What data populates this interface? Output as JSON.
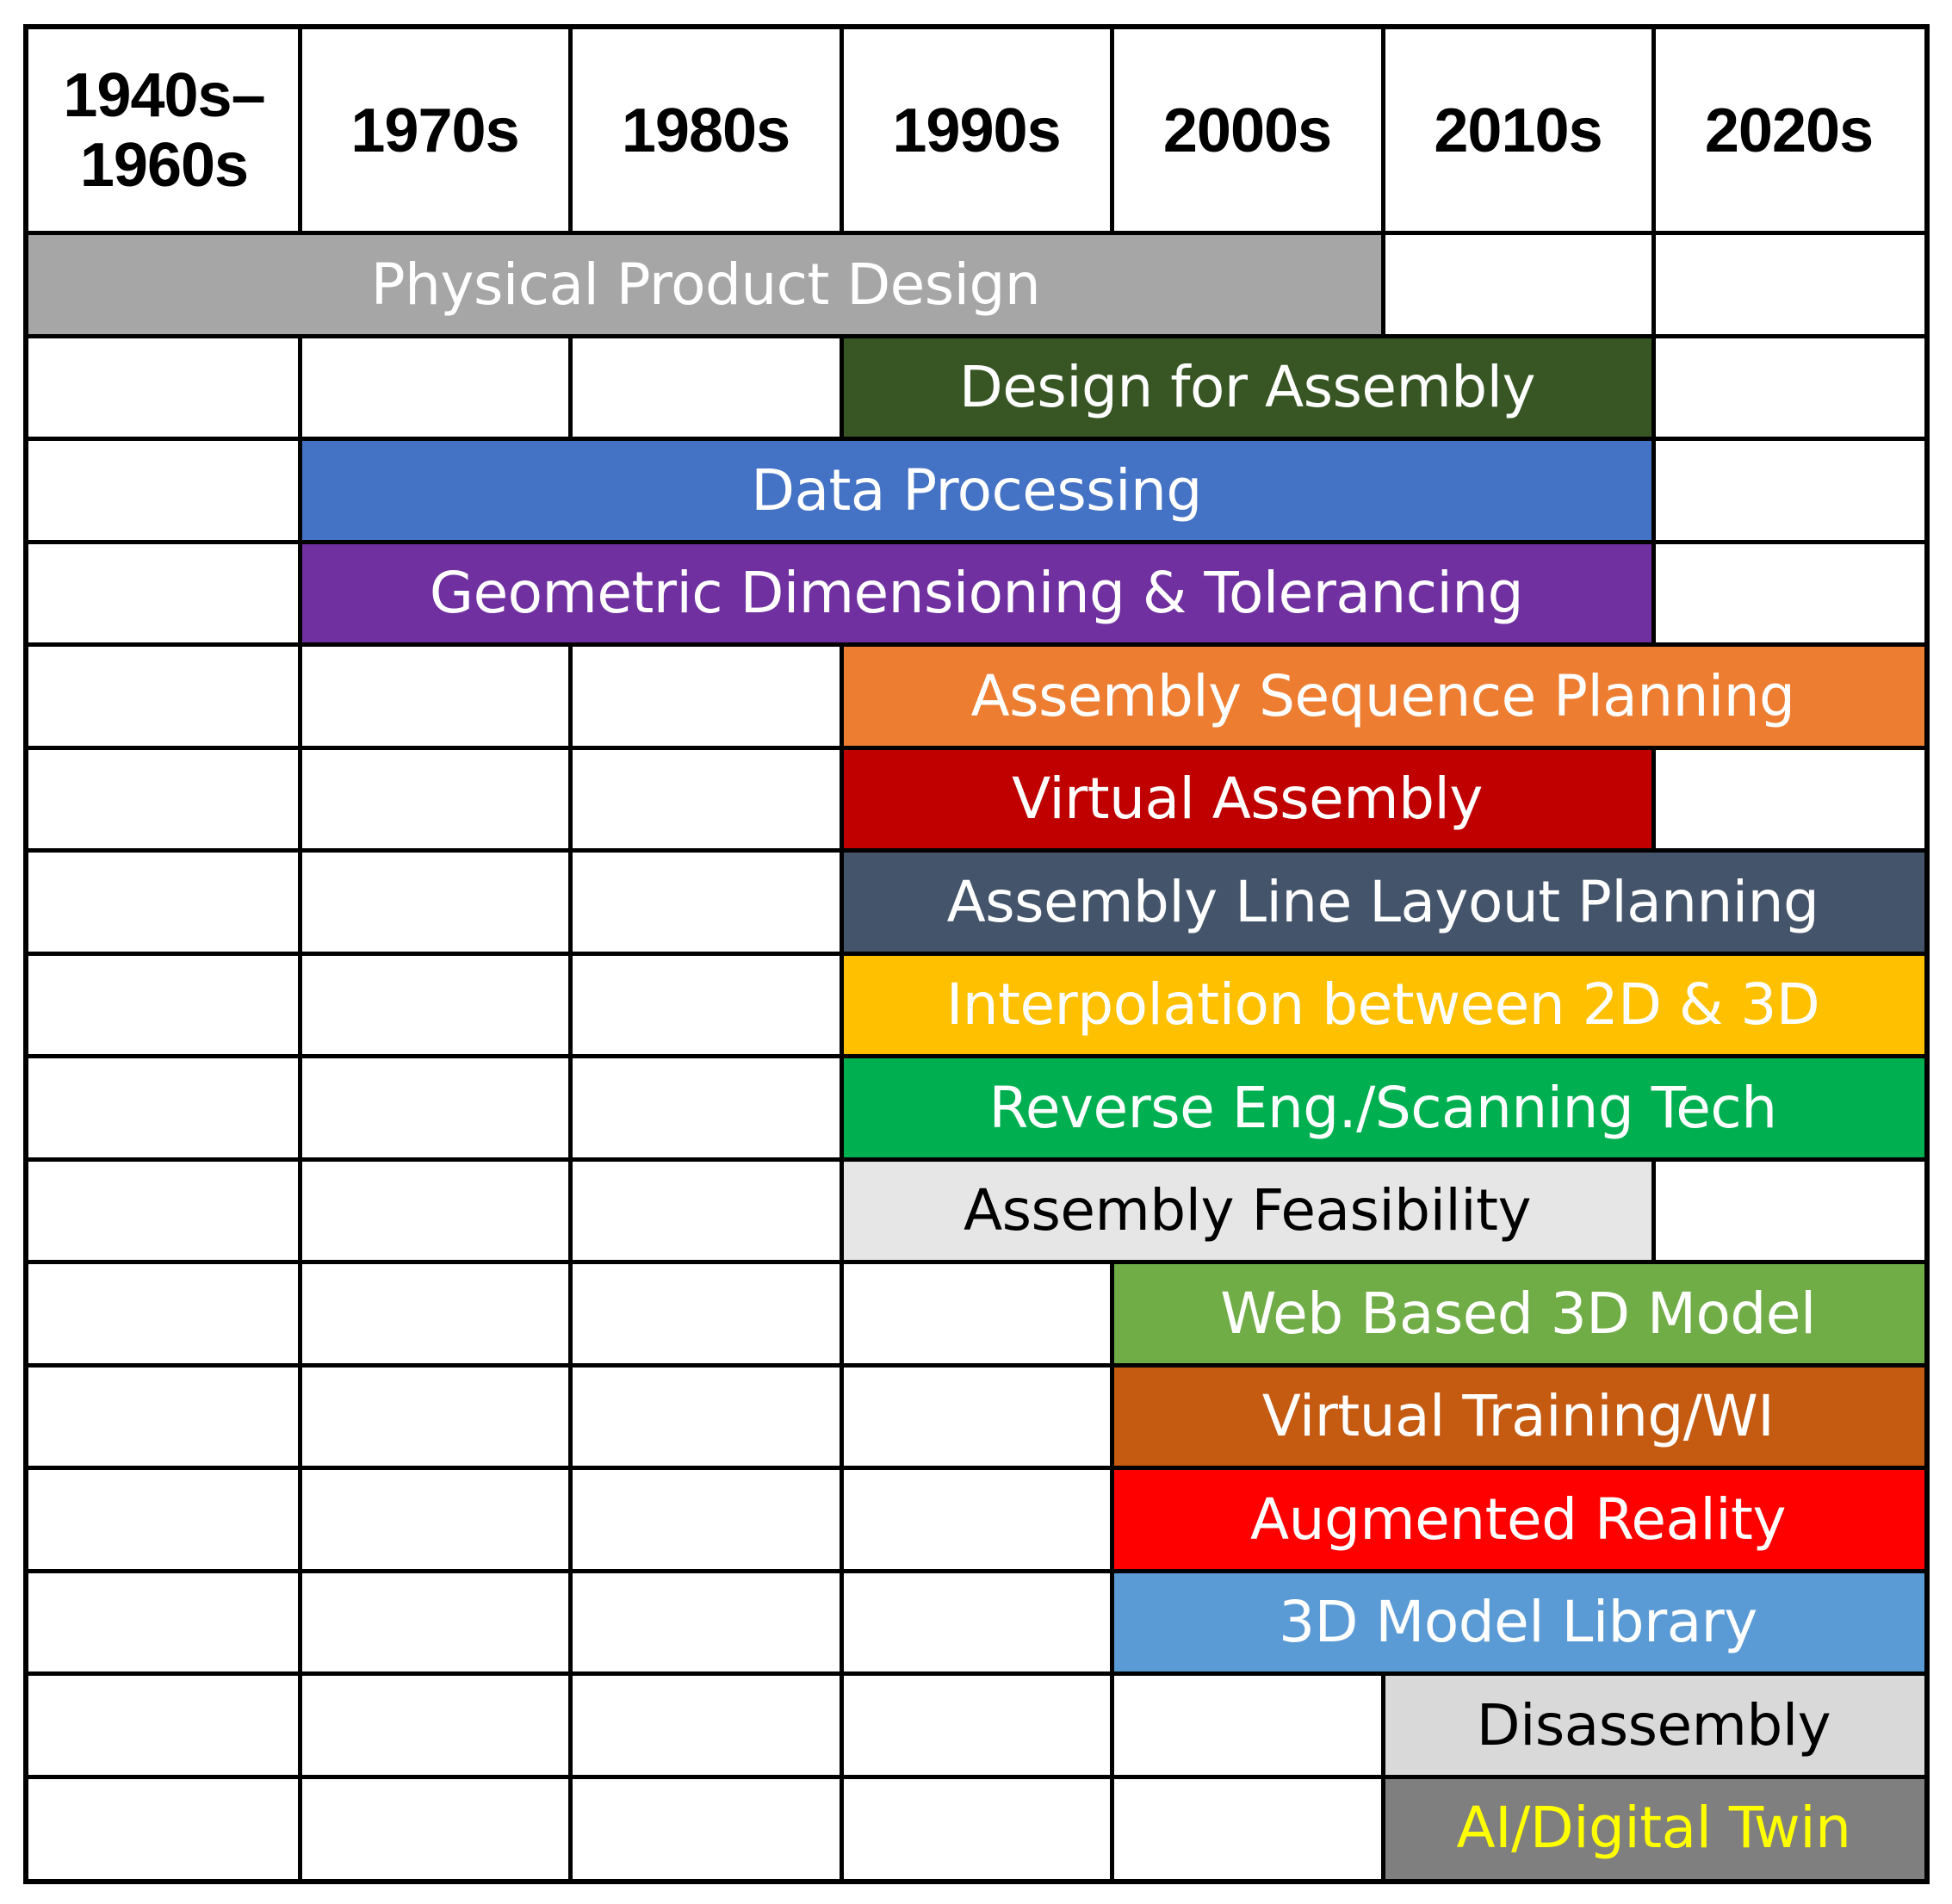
{
  "header": {
    "periods": [
      "1940s–\n1960s",
      "1970s",
      "1980s",
      "1990s",
      "2000s",
      "2010s",
      "2020s"
    ]
  },
  "topics": [
    {
      "label": "Physical Product Design",
      "start": 0,
      "end": 5,
      "fill": "#a6a6a6",
      "text_color": "#ffffff"
    },
    {
      "label": "Design for Assembly",
      "start": 3,
      "end": 6,
      "fill": "#375623",
      "text_color": "#ffffff"
    },
    {
      "label": "Data Processing",
      "start": 1,
      "end": 6,
      "fill": "#4472c4",
      "text_color": "#ffffff"
    },
    {
      "label": "Geometric Dimensioning & Tolerancing",
      "start": 1,
      "end": 6,
      "fill": "#7030a0",
      "text_color": "#ffffff"
    },
    {
      "label": "Assembly Sequence Planning",
      "start": 3,
      "end": 7,
      "fill": "#ed7d31",
      "text_color": "#ffffff"
    },
    {
      "label": "Virtual Assembly",
      "start": 3,
      "end": 6,
      "fill": "#c00000",
      "text_color": "#ffffff"
    },
    {
      "label": "Assembly Line Layout Planning",
      "start": 3,
      "end": 7,
      "fill": "#44546a",
      "text_color": "#ffffff"
    },
    {
      "label": "Interpolation between 2D & 3D",
      "start": 3,
      "end": 7,
      "fill": "#ffc000",
      "text_color": "#ffffff"
    },
    {
      "label": "Reverse Eng./Scanning Tech",
      "start": 3,
      "end": 7,
      "fill": "#00b050",
      "text_color": "#ffffff"
    },
    {
      "label": "Assembly Feasibility",
      "start": 3,
      "end": 6,
      "fill": "#e7e6e6",
      "text_color": "#000000"
    },
    {
      "label": "Web Based 3D Model",
      "start": 4,
      "end": 7,
      "fill": "#70ad47",
      "text_color": "#ffffff"
    },
    {
      "label": "Virtual Training/WI",
      "start": 4,
      "end": 7,
      "fill": "#c55a11",
      "text_color": "#ffffff"
    },
    {
      "label": "Augmented Reality",
      "start": 4,
      "end": 7,
      "fill": "#ff0000",
      "text_color": "#ffffff"
    },
    {
      "label": "3D Model Library",
      "start": 4,
      "end": 7,
      "fill": "#5b9bd5",
      "text_color": "#ffffff"
    },
    {
      "label": "Disassembly",
      "start": 5,
      "end": 7,
      "fill": "#d9d9d9",
      "text_color": "#000000"
    },
    {
      "label": "AI/Digital Twin",
      "start": 5,
      "end": 7,
      "fill": "#7f7f7f",
      "text_color": "#ffff00"
    }
  ]
}
